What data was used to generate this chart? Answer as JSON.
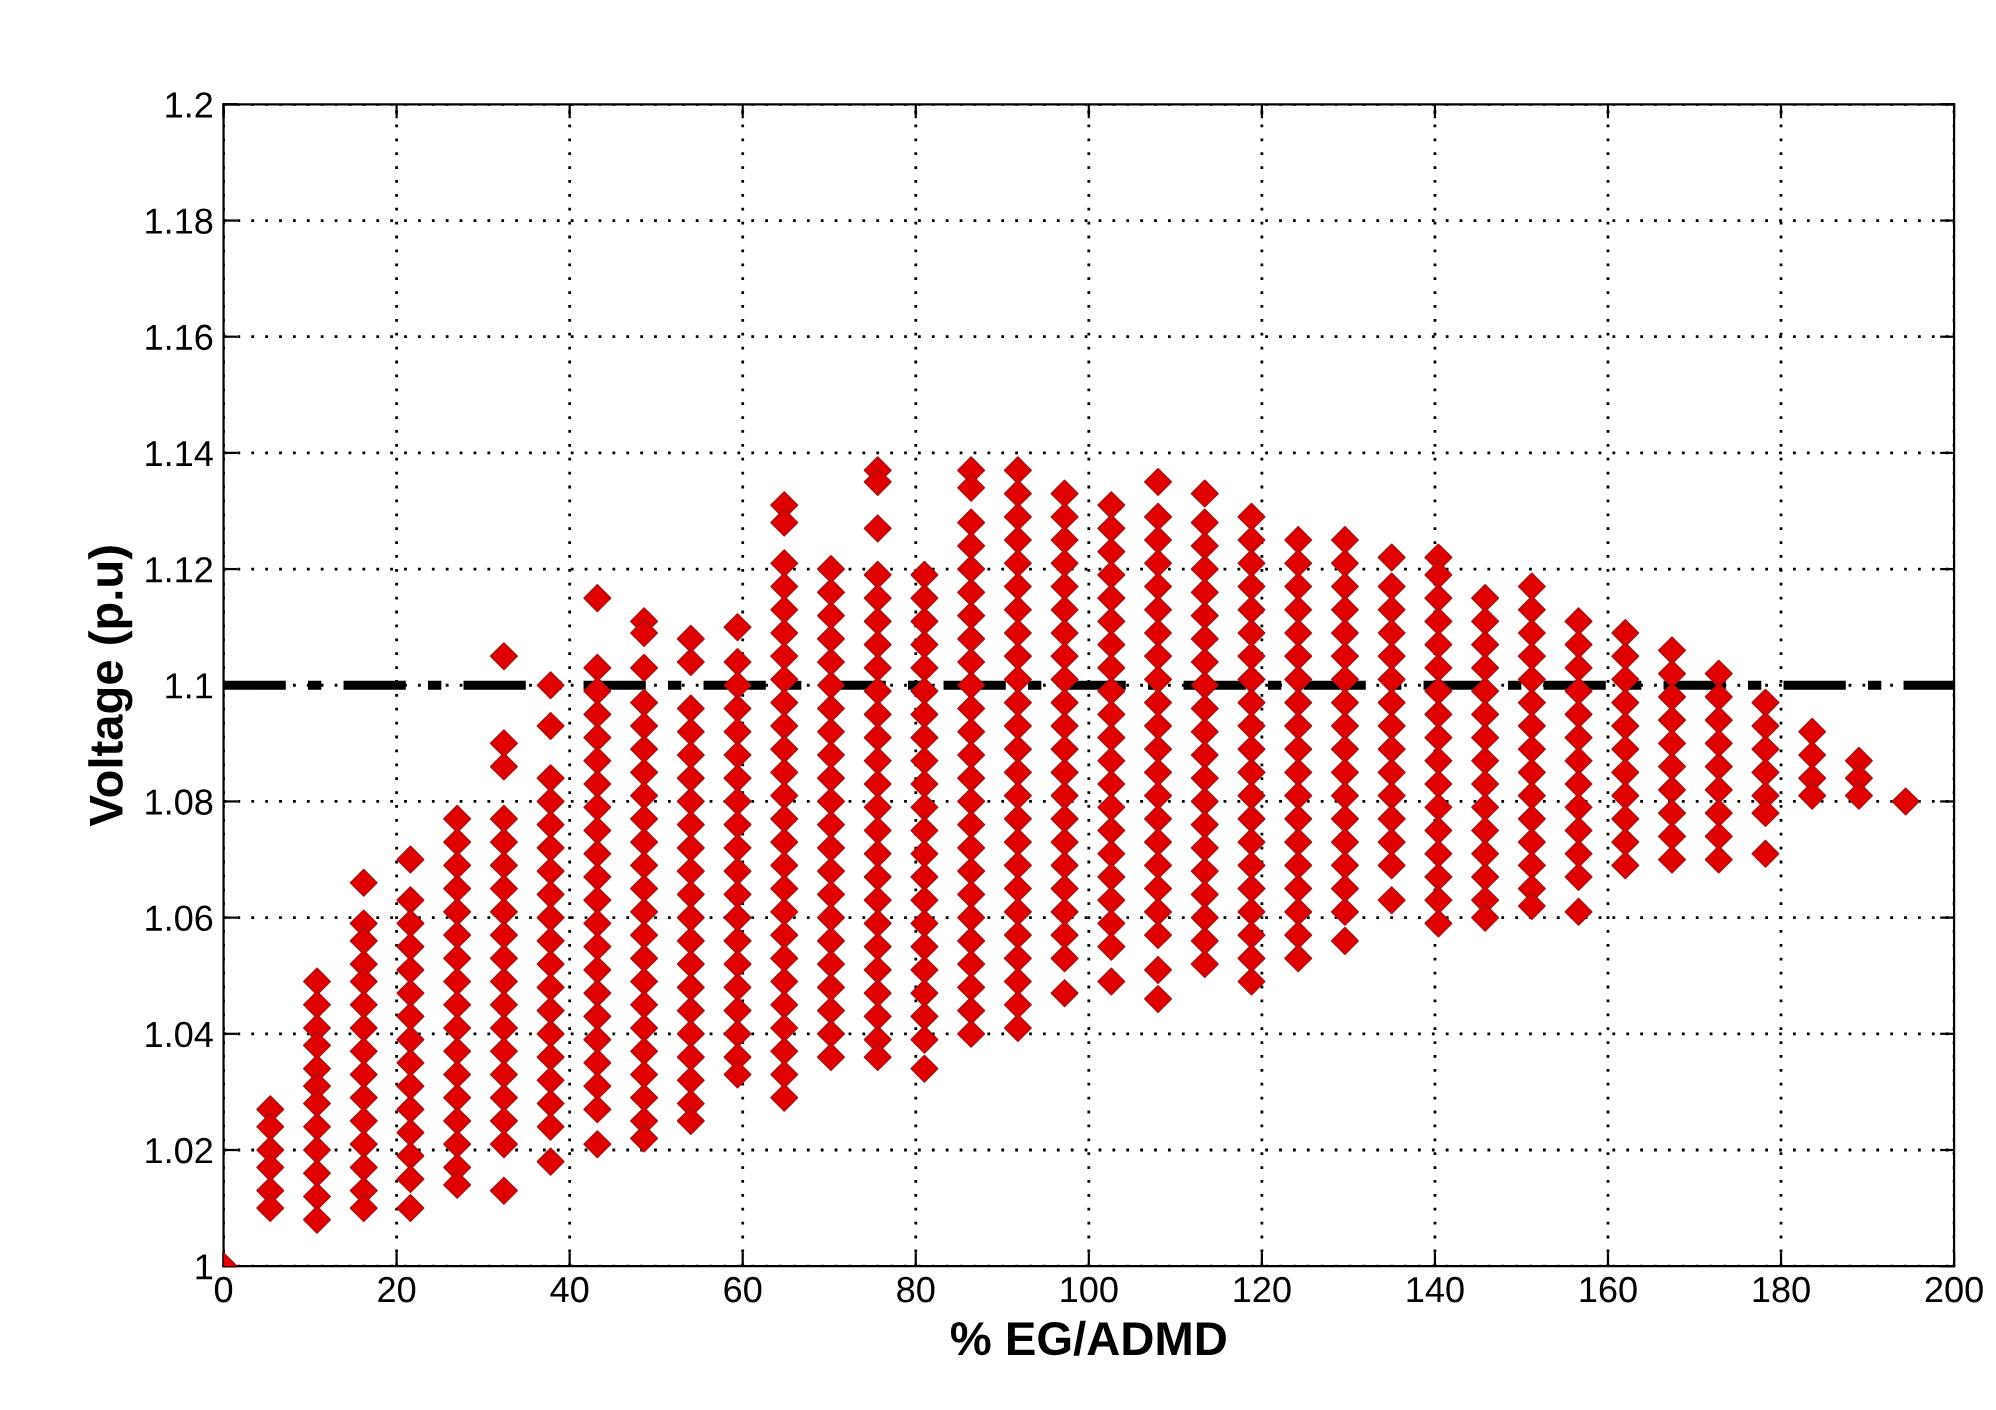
{
  "chart_data": {
    "type": "scatter",
    "xlabel": "% EG/ADMD",
    "ylabel": "Voltage (p.u)",
    "marker": "diamond",
    "grid": true,
    "xlim": [
      0,
      200
    ],
    "xticks": [
      0,
      20,
      40,
      60,
      80,
      100,
      120,
      140,
      160,
      180,
      200
    ],
    "ylim": [
      1,
      1.2
    ],
    "yticks": [
      1,
      1.02,
      1.04,
      1.06,
      1.08,
      1.1,
      1.12,
      1.14,
      1.16,
      1.18,
      1.2
    ],
    "ref_lines": [
      {
        "axis": "y",
        "value": 1.1,
        "color": "#000000",
        "line_style": "dashed"
      }
    ],
    "series": [
      {
        "color": "#e00000",
        "x": [
          0
        ],
        "values": [
          1.0
        ]
      },
      {
        "color": "#e00000",
        "x": [
          5.4,
          5.4,
          5.4,
          5.4,
          5.4,
          5.4
        ],
        "values": [
          1.027,
          1.024,
          1.02,
          1.017,
          1.013,
          1.01
        ]
      },
      {
        "color": "#e00000",
        "x": [
          10.8,
          10.8,
          10.8,
          10.8,
          10.8,
          10.8,
          10.8,
          10.8,
          10.8,
          10.8,
          10.8,
          10.8
        ],
        "values": [
          1.049,
          1.045,
          1.041,
          1.038,
          1.034,
          1.031,
          1.028,
          1.024,
          1.02,
          1.016,
          1.012,
          1.008
        ]
      },
      {
        "color": "#e00000",
        "x": [
          16.2,
          16.2,
          16.2,
          16.2,
          16.2,
          16.2,
          16.2,
          16.2,
          16.2,
          16.2,
          16.2,
          16.2,
          16.2,
          16.2,
          16.2
        ],
        "values": [
          1.066,
          1.059,
          1.056,
          1.052,
          1.049,
          1.045,
          1.041,
          1.037,
          1.033,
          1.029,
          1.025,
          1.021,
          1.017,
          1.013,
          1.01
        ]
      },
      {
        "color": "#e00000",
        "x": [
          21.6,
          21.6,
          21.6,
          21.6,
          21.6,
          21.6,
          21.6,
          21.6,
          21.6,
          21.6,
          21.6,
          21.6,
          21.6,
          21.6,
          21.6
        ],
        "values": [
          1.07,
          1.063,
          1.059,
          1.055,
          1.051,
          1.047,
          1.043,
          1.039,
          1.035,
          1.031,
          1.027,
          1.023,
          1.019,
          1.015,
          1.01
        ]
      },
      {
        "color": "#e00000",
        "x": [
          27,
          27,
          27,
          27,
          27,
          27,
          27,
          27,
          27,
          27,
          27,
          27,
          27,
          27,
          27,
          27,
          27
        ],
        "values": [
          1.077,
          1.073,
          1.069,
          1.065,
          1.061,
          1.057,
          1.053,
          1.049,
          1.045,
          1.041,
          1.037,
          1.033,
          1.029,
          1.025,
          1.021,
          1.017,
          1.014
        ]
      },
      {
        "color": "#e00000",
        "x": [
          32.4,
          32.4,
          32.4,
          32.4,
          32.4,
          32.4,
          32.4,
          32.4,
          32.4,
          32.4,
          32.4,
          32.4,
          32.4,
          32.4,
          32.4,
          32.4,
          32.4,
          32.4,
          32.4
        ],
        "values": [
          1.105,
          1.09,
          1.086,
          1.077,
          1.073,
          1.069,
          1.065,
          1.061,
          1.057,
          1.053,
          1.049,
          1.045,
          1.041,
          1.037,
          1.033,
          1.029,
          1.025,
          1.021,
          1.013
        ]
      },
      {
        "color": "#e00000",
        "x": [
          37.8,
          37.8,
          37.8,
          37.8,
          37.8,
          37.8,
          37.8,
          37.8,
          37.8,
          37.8,
          37.8,
          37.8,
          37.8,
          37.8,
          37.8,
          37.8,
          37.8,
          37.8,
          37.8
        ],
        "values": [
          1.1,
          1.093,
          1.084,
          1.08,
          1.076,
          1.072,
          1.068,
          1.064,
          1.06,
          1.056,
          1.052,
          1.048,
          1.044,
          1.04,
          1.036,
          1.032,
          1.028,
          1.024,
          1.018
        ]
      },
      {
        "color": "#e00000",
        "x": [
          43.2,
          43.2,
          43.2,
          43.2,
          43.2,
          43.2,
          43.2,
          43.2,
          43.2,
          43.2,
          43.2,
          43.2,
          43.2,
          43.2,
          43.2,
          43.2,
          43.2,
          43.2,
          43.2,
          43.2,
          43.2,
          43.2
        ],
        "values": [
          1.115,
          1.103,
          1.099,
          1.095,
          1.091,
          1.087,
          1.083,
          1.079,
          1.075,
          1.071,
          1.067,
          1.063,
          1.059,
          1.055,
          1.051,
          1.047,
          1.043,
          1.039,
          1.035,
          1.031,
          1.027,
          1.021
        ]
      },
      {
        "color": "#e00000",
        "x": [
          48.6,
          48.6,
          48.6,
          48.6,
          48.6,
          48.6,
          48.6,
          48.6,
          48.6,
          48.6,
          48.6,
          48.6,
          48.6,
          48.6,
          48.6,
          48.6,
          48.6,
          48.6,
          48.6,
          48.6,
          48.6,
          48.6,
          48.6
        ],
        "values": [
          1.111,
          1.109,
          1.103,
          1.097,
          1.093,
          1.089,
          1.085,
          1.081,
          1.077,
          1.073,
          1.069,
          1.065,
          1.061,
          1.057,
          1.053,
          1.049,
          1.045,
          1.041,
          1.037,
          1.033,
          1.029,
          1.025,
          1.022
        ]
      },
      {
        "color": "#e00000",
        "x": [
          54,
          54,
          54,
          54,
          54,
          54,
          54,
          54,
          54,
          54,
          54,
          54,
          54,
          54,
          54,
          54,
          54,
          54,
          54,
          54,
          54
        ],
        "values": [
          1.108,
          1.104,
          1.096,
          1.092,
          1.088,
          1.084,
          1.08,
          1.076,
          1.072,
          1.068,
          1.064,
          1.06,
          1.056,
          1.052,
          1.048,
          1.044,
          1.04,
          1.036,
          1.032,
          1.028,
          1.025
        ]
      },
      {
        "color": "#e00000",
        "x": [
          59.4,
          59.4,
          59.4,
          59.4,
          59.4,
          59.4,
          59.4,
          59.4,
          59.4,
          59.4,
          59.4,
          59.4,
          59.4,
          59.4,
          59.4,
          59.4,
          59.4,
          59.4,
          59.4,
          59.4
        ],
        "values": [
          1.11,
          1.104,
          1.1,
          1.096,
          1.092,
          1.088,
          1.084,
          1.08,
          1.076,
          1.072,
          1.068,
          1.064,
          1.06,
          1.056,
          1.052,
          1.048,
          1.044,
          1.04,
          1.036,
          1.033
        ]
      },
      {
        "color": "#e00000",
        "x": [
          64.8,
          64.8,
          64.8,
          64.8,
          64.8,
          64.8,
          64.8,
          64.8,
          64.8,
          64.8,
          64.8,
          64.8,
          64.8,
          64.8,
          64.8,
          64.8,
          64.8,
          64.8,
          64.8,
          64.8,
          64.8,
          64.8,
          64.8,
          64.8,
          64.8,
          64.8
        ],
        "values": [
          1.131,
          1.128,
          1.121,
          1.117,
          1.113,
          1.109,
          1.105,
          1.101,
          1.097,
          1.093,
          1.089,
          1.085,
          1.081,
          1.077,
          1.073,
          1.069,
          1.065,
          1.061,
          1.057,
          1.053,
          1.049,
          1.045,
          1.041,
          1.037,
          1.033,
          1.029
        ]
      },
      {
        "color": "#e00000",
        "x": [
          70.2,
          70.2,
          70.2,
          70.2,
          70.2,
          70.2,
          70.2,
          70.2,
          70.2,
          70.2,
          70.2,
          70.2,
          70.2,
          70.2,
          70.2,
          70.2,
          70.2,
          70.2,
          70.2,
          70.2,
          70.2,
          70.2
        ],
        "values": [
          1.12,
          1.116,
          1.112,
          1.108,
          1.104,
          1.1,
          1.096,
          1.092,
          1.088,
          1.084,
          1.08,
          1.076,
          1.072,
          1.068,
          1.064,
          1.06,
          1.056,
          1.052,
          1.048,
          1.044,
          1.04,
          1.036
        ]
      },
      {
        "color": "#e00000",
        "x": [
          75.6,
          75.6,
          75.6,
          75.6,
          75.6,
          75.6,
          75.6,
          75.6,
          75.6,
          75.6,
          75.6,
          75.6,
          75.6,
          75.6,
          75.6,
          75.6,
          75.6,
          75.6,
          75.6,
          75.6,
          75.6,
          75.6,
          75.6,
          75.6,
          75.6
        ],
        "values": [
          1.137,
          1.135,
          1.127,
          1.119,
          1.115,
          1.111,
          1.107,
          1.103,
          1.099,
          1.095,
          1.091,
          1.087,
          1.083,
          1.079,
          1.075,
          1.071,
          1.067,
          1.063,
          1.059,
          1.055,
          1.051,
          1.047,
          1.043,
          1.039,
          1.036
        ]
      },
      {
        "color": "#e00000",
        "x": [
          81,
          81,
          81,
          81,
          81,
          81,
          81,
          81,
          81,
          81,
          81,
          81,
          81,
          81,
          81,
          81,
          81,
          81,
          81,
          81,
          81,
          81
        ],
        "values": [
          1.119,
          1.115,
          1.111,
          1.107,
          1.103,
          1.099,
          1.095,
          1.091,
          1.087,
          1.083,
          1.079,
          1.075,
          1.071,
          1.067,
          1.063,
          1.059,
          1.055,
          1.051,
          1.047,
          1.043,
          1.039,
          1.034
        ]
      },
      {
        "color": "#e00000",
        "x": [
          86.4,
          86.4,
          86.4,
          86.4,
          86.4,
          86.4,
          86.4,
          86.4,
          86.4,
          86.4,
          86.4,
          86.4,
          86.4,
          86.4,
          86.4,
          86.4,
          86.4,
          86.4,
          86.4,
          86.4,
          86.4,
          86.4,
          86.4,
          86.4,
          86.4
        ],
        "values": [
          1.137,
          1.134,
          1.128,
          1.124,
          1.12,
          1.116,
          1.112,
          1.108,
          1.104,
          1.1,
          1.096,
          1.092,
          1.088,
          1.084,
          1.08,
          1.076,
          1.072,
          1.068,
          1.064,
          1.06,
          1.056,
          1.052,
          1.048,
          1.044,
          1.04
        ]
      },
      {
        "color": "#e00000",
        "x": [
          91.8,
          91.8,
          91.8,
          91.8,
          91.8,
          91.8,
          91.8,
          91.8,
          91.8,
          91.8,
          91.8,
          91.8,
          91.8,
          91.8,
          91.8,
          91.8,
          91.8,
          91.8,
          91.8,
          91.8,
          91.8,
          91.8,
          91.8,
          91.8,
          91.8
        ],
        "values": [
          1.137,
          1.133,
          1.129,
          1.125,
          1.121,
          1.117,
          1.113,
          1.109,
          1.105,
          1.101,
          1.097,
          1.093,
          1.089,
          1.085,
          1.081,
          1.077,
          1.073,
          1.069,
          1.065,
          1.061,
          1.057,
          1.053,
          1.049,
          1.045,
          1.041
        ]
      },
      {
        "color": "#e00000",
        "x": [
          97.2,
          97.2,
          97.2,
          97.2,
          97.2,
          97.2,
          97.2,
          97.2,
          97.2,
          97.2,
          97.2,
          97.2,
          97.2,
          97.2,
          97.2,
          97.2,
          97.2,
          97.2,
          97.2,
          97.2,
          97.2,
          97.2
        ],
        "values": [
          1.133,
          1.129,
          1.125,
          1.121,
          1.117,
          1.113,
          1.109,
          1.105,
          1.101,
          1.097,
          1.093,
          1.089,
          1.085,
          1.081,
          1.077,
          1.073,
          1.069,
          1.065,
          1.061,
          1.057,
          1.053,
          1.047
        ]
      },
      {
        "color": "#e00000",
        "x": [
          102.6,
          102.6,
          102.6,
          102.6,
          102.6,
          102.6,
          102.6,
          102.6,
          102.6,
          102.6,
          102.6,
          102.6,
          102.6,
          102.6,
          102.6,
          102.6,
          102.6,
          102.6,
          102.6,
          102.6,
          102.6
        ],
        "values": [
          1.131,
          1.127,
          1.123,
          1.119,
          1.115,
          1.111,
          1.107,
          1.103,
          1.099,
          1.095,
          1.091,
          1.087,
          1.083,
          1.079,
          1.075,
          1.071,
          1.067,
          1.063,
          1.059,
          1.055,
          1.049
        ]
      },
      {
        "color": "#e00000",
        "x": [
          108,
          108,
          108,
          108,
          108,
          108,
          108,
          108,
          108,
          108,
          108,
          108,
          108,
          108,
          108,
          108,
          108,
          108,
          108,
          108,
          108,
          108
        ],
        "values": [
          1.135,
          1.129,
          1.125,
          1.121,
          1.117,
          1.113,
          1.109,
          1.105,
          1.101,
          1.097,
          1.093,
          1.089,
          1.085,
          1.081,
          1.077,
          1.073,
          1.069,
          1.065,
          1.061,
          1.057,
          1.051,
          1.046
        ]
      },
      {
        "color": "#e00000",
        "x": [
          113.4,
          113.4,
          113.4,
          113.4,
          113.4,
          113.4,
          113.4,
          113.4,
          113.4,
          113.4,
          113.4,
          113.4,
          113.4,
          113.4,
          113.4,
          113.4,
          113.4,
          113.4,
          113.4,
          113.4,
          113.4
        ],
        "values": [
          1.133,
          1.128,
          1.124,
          1.12,
          1.116,
          1.112,
          1.108,
          1.104,
          1.1,
          1.096,
          1.092,
          1.088,
          1.084,
          1.08,
          1.076,
          1.072,
          1.068,
          1.064,
          1.06,
          1.056,
          1.052
        ]
      },
      {
        "color": "#e00000",
        "x": [
          118.8,
          118.8,
          118.8,
          118.8,
          118.8,
          118.8,
          118.8,
          118.8,
          118.8,
          118.8,
          118.8,
          118.8,
          118.8,
          118.8,
          118.8,
          118.8,
          118.8,
          118.8,
          118.8,
          118.8,
          118.8
        ],
        "values": [
          1.129,
          1.125,
          1.121,
          1.117,
          1.113,
          1.109,
          1.105,
          1.101,
          1.097,
          1.093,
          1.089,
          1.085,
          1.081,
          1.077,
          1.073,
          1.069,
          1.065,
          1.061,
          1.057,
          1.053,
          1.049
        ]
      },
      {
        "color": "#e00000",
        "x": [
          124.2,
          124.2,
          124.2,
          124.2,
          124.2,
          124.2,
          124.2,
          124.2,
          124.2,
          124.2,
          124.2,
          124.2,
          124.2,
          124.2,
          124.2,
          124.2,
          124.2,
          124.2,
          124.2
        ],
        "values": [
          1.125,
          1.121,
          1.117,
          1.113,
          1.109,
          1.105,
          1.101,
          1.097,
          1.093,
          1.089,
          1.085,
          1.081,
          1.077,
          1.073,
          1.069,
          1.065,
          1.061,
          1.057,
          1.053
        ]
      },
      {
        "color": "#e00000",
        "x": [
          129.6,
          129.6,
          129.6,
          129.6,
          129.6,
          129.6,
          129.6,
          129.6,
          129.6,
          129.6,
          129.6,
          129.6,
          129.6,
          129.6,
          129.6,
          129.6,
          129.6,
          129.6
        ],
        "values": [
          1.125,
          1.121,
          1.117,
          1.113,
          1.109,
          1.105,
          1.101,
          1.097,
          1.093,
          1.089,
          1.085,
          1.081,
          1.077,
          1.073,
          1.069,
          1.065,
          1.061,
          1.056
        ]
      },
      {
        "color": "#e00000",
        "x": [
          135,
          135,
          135,
          135,
          135,
          135,
          135,
          135,
          135,
          135,
          135,
          135,
          135,
          135,
          135
        ],
        "values": [
          1.122,
          1.117,
          1.113,
          1.109,
          1.105,
          1.101,
          1.097,
          1.093,
          1.089,
          1.085,
          1.081,
          1.077,
          1.073,
          1.069,
          1.063
        ]
      },
      {
        "color": "#e00000",
        "x": [
          140.4,
          140.4,
          140.4,
          140.4,
          140.4,
          140.4,
          140.4,
          140.4,
          140.4,
          140.4,
          140.4,
          140.4,
          140.4,
          140.4,
          140.4,
          140.4,
          140.4
        ],
        "values": [
          1.122,
          1.119,
          1.115,
          1.111,
          1.107,
          1.103,
          1.099,
          1.095,
          1.091,
          1.087,
          1.083,
          1.079,
          1.075,
          1.071,
          1.067,
          1.063,
          1.059
        ]
      },
      {
        "color": "#e00000",
        "x": [
          145.8,
          145.8,
          145.8,
          145.8,
          145.8,
          145.8,
          145.8,
          145.8,
          145.8,
          145.8,
          145.8,
          145.8,
          145.8,
          145.8,
          145.8
        ],
        "values": [
          1.115,
          1.111,
          1.107,
          1.103,
          1.099,
          1.095,
          1.091,
          1.087,
          1.083,
          1.079,
          1.075,
          1.071,
          1.067,
          1.063,
          1.06
        ]
      },
      {
        "color": "#e00000",
        "x": [
          151.2,
          151.2,
          151.2,
          151.2,
          151.2,
          151.2,
          151.2,
          151.2,
          151.2,
          151.2,
          151.2,
          151.2,
          151.2,
          151.2,
          151.2
        ],
        "values": [
          1.117,
          1.113,
          1.109,
          1.105,
          1.101,
          1.097,
          1.093,
          1.089,
          1.085,
          1.081,
          1.077,
          1.073,
          1.069,
          1.065,
          1.062
        ]
      },
      {
        "color": "#e00000",
        "x": [
          156.6,
          156.6,
          156.6,
          156.6,
          156.6,
          156.6,
          156.6,
          156.6,
          156.6,
          156.6,
          156.6,
          156.6,
          156.6
        ],
        "values": [
          1.111,
          1.107,
          1.103,
          1.099,
          1.095,
          1.091,
          1.087,
          1.083,
          1.079,
          1.075,
          1.071,
          1.067,
          1.061
        ]
      },
      {
        "color": "#e00000",
        "x": [
          162,
          162,
          162,
          162,
          162,
          162,
          162,
          162,
          162,
          162,
          162
        ],
        "values": [
          1.109,
          1.105,
          1.101,
          1.097,
          1.093,
          1.089,
          1.085,
          1.081,
          1.077,
          1.073,
          1.069
        ]
      },
      {
        "color": "#e00000",
        "x": [
          167.4,
          167.4,
          167.4,
          167.4,
          167.4,
          167.4,
          167.4,
          167.4,
          167.4,
          167.4
        ],
        "values": [
          1.106,
          1.102,
          1.098,
          1.094,
          1.09,
          1.086,
          1.082,
          1.078,
          1.074,
          1.07
        ]
      },
      {
        "color": "#e00000",
        "x": [
          172.8,
          172.8,
          172.8,
          172.8,
          172.8,
          172.8,
          172.8,
          172.8,
          172.8
        ],
        "values": [
          1.102,
          1.098,
          1.094,
          1.09,
          1.086,
          1.082,
          1.078,
          1.074,
          1.07
        ]
      },
      {
        "color": "#e00000",
        "x": [
          178.2,
          178.2,
          178.2,
          178.2,
          178.2,
          178.2,
          178.2
        ],
        "values": [
          1.097,
          1.093,
          1.089,
          1.085,
          1.081,
          1.078,
          1.071
        ]
      },
      {
        "color": "#e00000",
        "x": [
          183.6,
          183.6,
          183.6,
          183.6
        ],
        "values": [
          1.092,
          1.088,
          1.084,
          1.081
        ]
      },
      {
        "color": "#e00000",
        "x": [
          189,
          189,
          189
        ],
        "values": [
          1.087,
          1.084,
          1.081
        ]
      },
      {
        "color": "#e00000",
        "x": [
          194.4
        ],
        "values": [
          1.08
        ]
      }
    ]
  }
}
